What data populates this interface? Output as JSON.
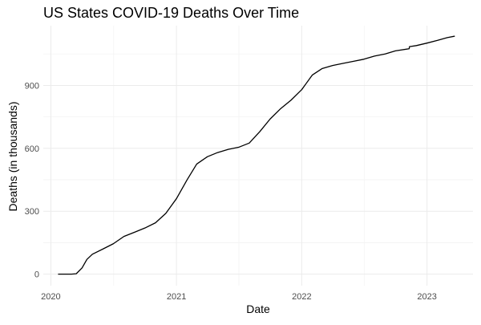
{
  "chart_data": {
    "type": "line",
    "title": "US States COVID-19 Deaths Over Time",
    "xlabel": "Date",
    "ylabel": "Deaths (in thousands)",
    "x_tick_labels": [
      "2020",
      "2021",
      "2022",
      "2023"
    ],
    "x_tick_dates": [
      "2020-01-01",
      "2021-01-01",
      "2022-01-01",
      "2023-01-01"
    ],
    "y_ticks": [
      0,
      300,
      600,
      900
    ],
    "xlim": [
      "2019-12-10",
      "2023-05-15"
    ],
    "ylim": [
      -55,
      1185
    ],
    "grid": true,
    "line_color": "#000000",
    "series": [
      {
        "x": [
          "2020-01-22",
          "2020-03-01",
          "2020-03-15",
          "2020-04-01",
          "2020-04-15",
          "2020-05-01",
          "2020-06-01",
          "2020-07-01",
          "2020-08-01",
          "2020-09-01",
          "2020-10-01",
          "2020-11-01",
          "2020-12-01",
          "2021-01-01",
          "2021-02-01",
          "2021-03-01",
          "2021-04-01",
          "2021-05-01",
          "2021-06-01",
          "2021-07-01",
          "2021-08-01",
          "2021-09-01",
          "2021-10-01",
          "2021-11-01",
          "2021-12-01",
          "2022-01-01",
          "2022-02-01",
          "2022-03-01",
          "2022-04-01",
          "2022-05-01",
          "2022-06-01",
          "2022-07-01",
          "2022-08-01",
          "2022-09-01",
          "2022-10-01",
          "2022-11-10",
          "2022-11-11",
          "2022-12-01",
          "2023-01-01",
          "2023-02-01",
          "2023-03-01",
          "2023-03-23"
        ],
        "y": [
          0,
          0,
          2,
          30,
          70,
          95,
          120,
          145,
          180,
          200,
          220,
          245,
          290,
          360,
          450,
          525,
          560,
          580,
          595,
          605,
          625,
          680,
          740,
          790,
          830,
          880,
          950,
          980,
          995,
          1005,
          1015,
          1025,
          1040,
          1050,
          1065,
          1075,
          1085,
          1090,
          1102,
          1115,
          1128,
          1135
        ]
      }
    ]
  }
}
